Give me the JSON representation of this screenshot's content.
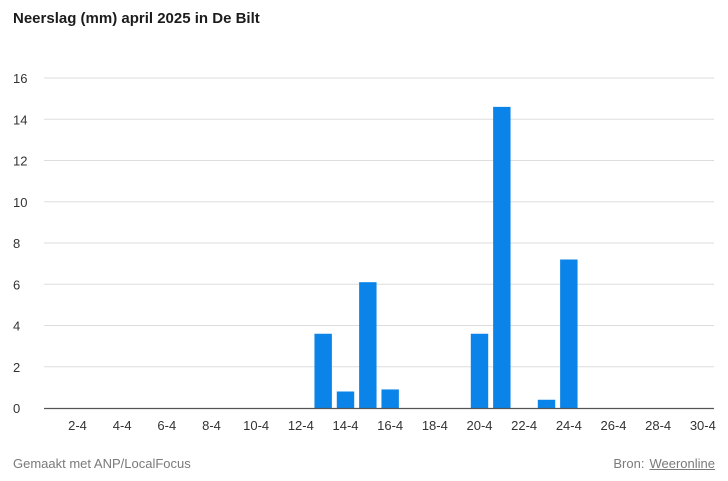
{
  "title": "Neerslag (mm) april 2025 in De Bilt",
  "footer": {
    "credit": "Gemaakt met ANP/LocalFocus",
    "source_label": "Bron:",
    "source_link": "Weeronline"
  },
  "colors": {
    "bar": "#0a84e8",
    "grid": "#dddddd",
    "axis": "#555555"
  },
  "chart_data": {
    "type": "bar",
    "categories": [
      "1-4",
      "2-4",
      "3-4",
      "4-4",
      "5-4",
      "6-4",
      "7-4",
      "8-4",
      "9-4",
      "10-4",
      "11-4",
      "12-4",
      "13-4",
      "14-4",
      "15-4",
      "16-4",
      "17-4",
      "18-4",
      "19-4",
      "20-4",
      "21-4",
      "22-4",
      "23-4",
      "24-4",
      "25-4",
      "26-4",
      "27-4",
      "28-4",
      "29-4",
      "30-4"
    ],
    "tick_labels": [
      "2-4",
      "4-4",
      "6-4",
      "8-4",
      "10-4",
      "12-4",
      "14-4",
      "16-4",
      "18-4",
      "20-4",
      "22-4",
      "24-4",
      "26-4",
      "28-4",
      "30-4"
    ],
    "values": [
      0,
      0,
      0,
      0,
      0,
      0,
      0,
      0,
      0,
      0,
      0,
      0,
      3.6,
      0.8,
      6.1,
      0.9,
      0,
      0,
      0,
      3.6,
      14.6,
      0,
      0.4,
      7.2,
      0,
      0,
      0,
      0,
      0,
      0
    ],
    "ylim": [
      0,
      16
    ],
    "yticks": [
      "0",
      "2",
      "4",
      "6",
      "8",
      "10",
      "12",
      "14",
      "16"
    ],
    "grid": true,
    "legend": "none"
  }
}
